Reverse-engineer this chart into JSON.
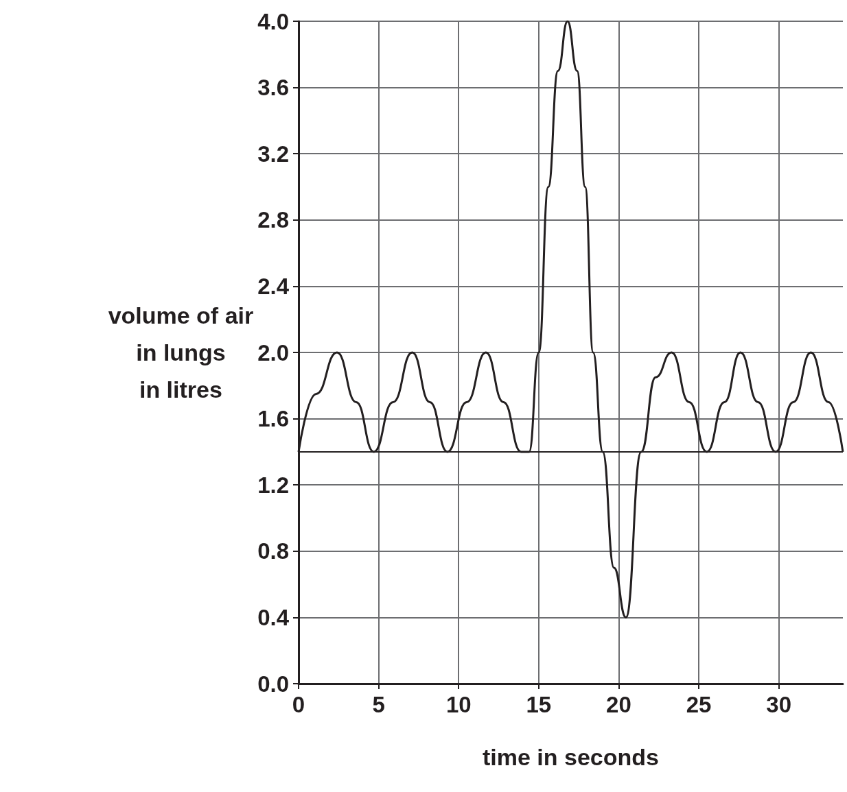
{
  "chart_data": {
    "type": "line",
    "xlabel": "time in seconds",
    "ylabel": "volume of air\nin lungs\nin litres",
    "xlim": [
      0,
      34
    ],
    "xticks": [
      0,
      5,
      10,
      15,
      20,
      25,
      30
    ],
    "ylim": [
      0,
      4
    ],
    "yticks": [
      {
        "value": 0,
        "label": "0.0"
      },
      0.4,
      0.8,
      1.2,
      1.6,
      {
        "value": 2,
        "label": "2.0"
      },
      2.4,
      2.8,
      3.2,
      3.6,
      {
        "value": 4,
        "label": "4.0"
      }
    ],
    "grid": true,
    "marker": "none",
    "line_style": "solid",
    "ref_lines": [
      {
        "axis": "y",
        "value": 1.4,
        "color": "#231f20"
      }
    ],
    "series": [
      {
        "color": "#231f20",
        "x": [
          0,
          1.1,
          2.4,
          3.6,
          4.7,
          5.9,
          7.1,
          8.2,
          9.3,
          10.5,
          11.7,
          12.8,
          13.9,
          14.4,
          15.0,
          15.6,
          16.2,
          16.8,
          17.4,
          17.9,
          18.4,
          19.0,
          19.7,
          20.45,
          21.4,
          22.3,
          23.3,
          24.4,
          25.5,
          26.6,
          27.6,
          28.7,
          29.8,
          30.9,
          32.0,
          33.1,
          34
        ],
        "values": [
          1.4,
          1.75,
          2.0,
          1.7,
          1.4,
          1.7,
          2.0,
          1.7,
          1.4,
          1.7,
          2.0,
          1.7,
          1.4,
          1.4,
          2.0,
          3.0,
          3.7,
          4.0,
          3.7,
          3.0,
          2.0,
          1.4,
          0.7,
          0.4,
          1.4,
          1.85,
          2.0,
          1.7,
          1.4,
          1.7,
          2.0,
          1.7,
          1.4,
          1.7,
          2.0,
          1.7,
          1.4
        ]
      }
    ]
  }
}
